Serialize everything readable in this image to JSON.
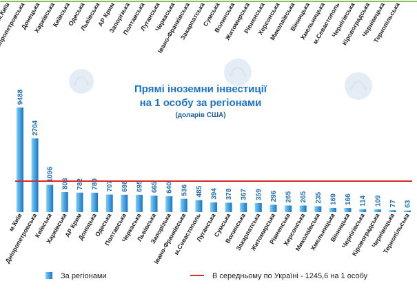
{
  "chart_data": {
    "type": "bar",
    "title": "Прямі іноземни інвестиції на 1 особу за регіонами",
    "title_lines": [
      "Прямі іноземни інвестиції",
      "на 1 особу за регіонами"
    ],
    "subtitle": "(доларів США)",
    "categories": [
      "м.Київ",
      "Дніпропетровська",
      "Київська",
      "Харківська",
      "АР Крим",
      "Донецька",
      "Одеська",
      "Полтавська",
      "Черкаська",
      "Львівська",
      "Запорізька",
      "Івано-Франківська",
      "м.Севастополь",
      "Луганська",
      "Сумська",
      "Волинська",
      "Закарпатська",
      "Житомирська",
      "Рівненська",
      "Херсонська",
      "Миколаївська",
      "Хмельницька",
      "Вінницька",
      "Чернігівська",
      "Кіровоградська",
      "Чернівецька",
      "Тернопільська"
    ],
    "series": [
      {
        "name": "За регіонами",
        "values": [
          9488,
          2704,
          1096,
          803,
          782,
          780,
          707,
          698,
          695,
          665,
          640,
          536,
          485,
          394,
          378,
          367,
          359,
          296,
          265,
          265,
          235,
          169,
          166,
          114,
          109,
          77,
          63
        ],
        "color": "#1e8fd6"
      }
    ],
    "reference_line": {
      "name": "В середньому по Україні - 1245,6 на 1 особу",
      "value": 1245.6,
      "color": "#d42a2a"
    },
    "top_categories": [
      "м.Київ",
      "Дніпропетровська",
      "Донецька",
      "Харківська",
      "Київська",
      "Одеська",
      "Львівська",
      "АР Крим",
      "Запорізька",
      "Полтавська",
      "Луганська",
      "Черкаська",
      "Івано-Франківська",
      "Закарпатська",
      "Сумська",
      "Волинська",
      "Житомирська",
      "Рівненська",
      "Херсонська",
      "Миколаївська",
      "Вінницька",
      "Хмельницька",
      "м.Севастополь",
      "Чернігівська",
      "Кіровоградська",
      "Чернівецька",
      "Тернопільська"
    ],
    "scale": "broken",
    "legend_position": "bottom",
    "grid": false
  },
  "legend": {
    "bars_label": "За регіонами",
    "line_label": "В середньому по Україні - 1245,6 на 1 особу"
  },
  "colors": {
    "bar_light": "#7fd0f5",
    "bar_dark": "#1676c8",
    "value_text": "#1f6fb5",
    "title": "#1a73c9",
    "average_line": "#d42a2a",
    "top_rule": "#86c35b"
  },
  "watermark_icon": "ukraine-logo-watermark"
}
